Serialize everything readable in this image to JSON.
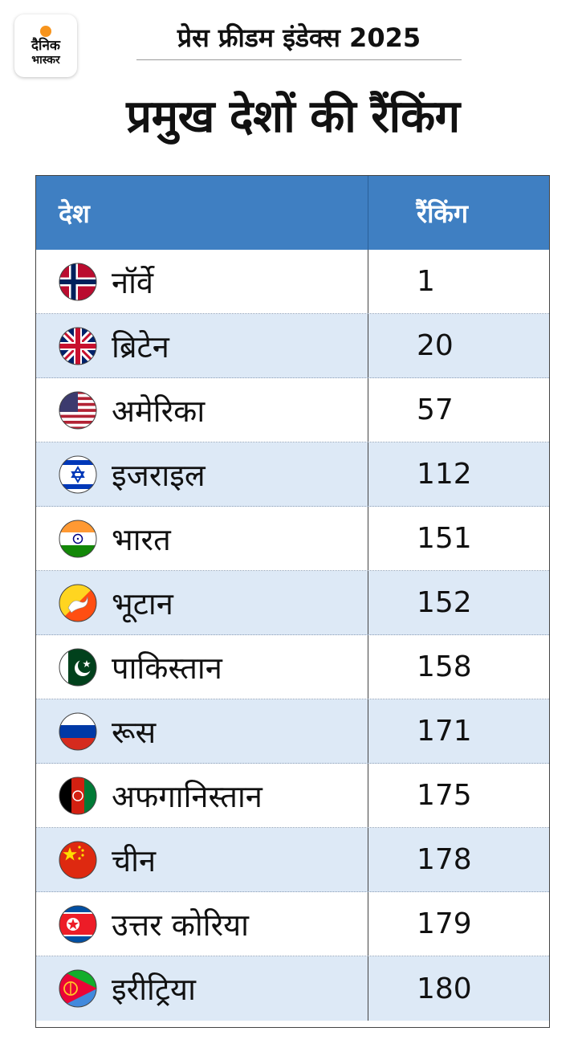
{
  "logo": {
    "line1": "दैनिक",
    "line2": "भास्कर"
  },
  "subtitle": "प्रेस फ्रीडम इंडेक्स 2025",
  "title": "प्रमुख देशों की रैंकिंग",
  "table": {
    "headers": {
      "country": "देश",
      "ranking": "रैंकिंग"
    },
    "rows": [
      {
        "country": "नॉर्वे",
        "rank": "1",
        "flag": "norway-flag-icon"
      },
      {
        "country": "ब्रिटेन",
        "rank": "20",
        "flag": "uk-flag-icon"
      },
      {
        "country": "अमेरिका",
        "rank": "57",
        "flag": "usa-flag-icon"
      },
      {
        "country": "इजराइल",
        "rank": "112",
        "flag": "israel-flag-icon"
      },
      {
        "country": "भारत",
        "rank": "151",
        "flag": "india-flag-icon"
      },
      {
        "country": "भूटान",
        "rank": "152",
        "flag": "bhutan-flag-icon"
      },
      {
        "country": "पाकिस्तान",
        "rank": "158",
        "flag": "pakistan-flag-icon"
      },
      {
        "country": "रूस",
        "rank": "171",
        "flag": "russia-flag-icon"
      },
      {
        "country": "अफगानिस्तान",
        "rank": "175",
        "flag": "afghanistan-flag-icon"
      },
      {
        "country": "चीन",
        "rank": "178",
        "flag": "china-flag-icon"
      },
      {
        "country": "उत्तर कोरिया",
        "rank": "179",
        "flag": "north-korea-flag-icon"
      },
      {
        "country": "इरीट्रिया",
        "rank": "180",
        "flag": "eritrea-flag-icon"
      }
    ]
  },
  "colors": {
    "header_bg": "#3f7fc2",
    "alt_row_bg": "#dde9f6",
    "logo_dot": "#f7941d"
  }
}
